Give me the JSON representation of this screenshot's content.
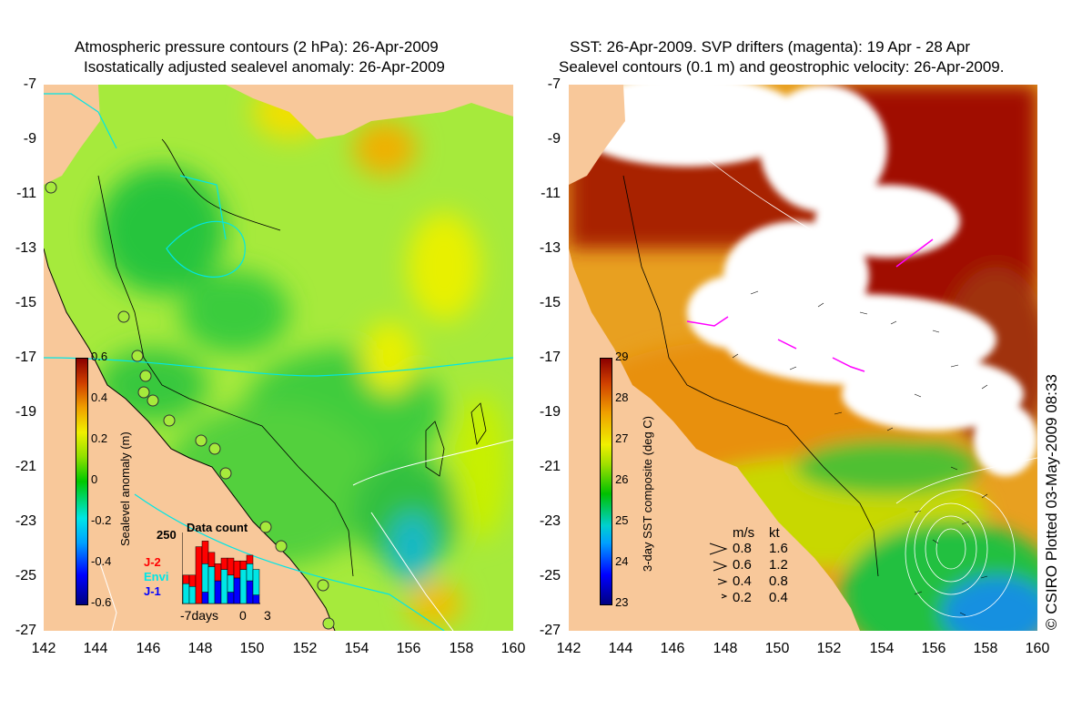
{
  "left": {
    "title_line1": "Atmospheric pressure contours (2 hPa): 26-Apr-2009",
    "title_line2": "Isostatically adjusted sealevel anomaly: 26-Apr-2009",
    "colorbar": {
      "label": "Sealevel anomaly (m)",
      "ticks": [
        "0.6",
        "0.4",
        "0.2",
        "0",
        "-0.2",
        "-0.4",
        "-0.6"
      ]
    },
    "data_count": {
      "title": "Data count",
      "max_label": "250",
      "satellites": [
        {
          "name": "J-2",
          "color": "#ff0000"
        },
        {
          "name": "Envi",
          "color": "#00e6e6"
        },
        {
          "name": "J-1",
          "color": "#0000ff"
        }
      ],
      "x_label_days": "-7days",
      "x_label_zero": "0",
      "x_label_three": "3",
      "bars": [
        {
          "red": 30,
          "cyan": 70,
          "blue": 0
        },
        {
          "red": 40,
          "cyan": 60,
          "blue": 0
        },
        {
          "red": 200,
          "cyan": 0,
          "blue": 0
        },
        {
          "red": 80,
          "cyan": 100,
          "blue": 40
        },
        {
          "red": 50,
          "cyan": 130,
          "blue": 0
        },
        {
          "red": 60,
          "cyan": 0,
          "blue": 80
        },
        {
          "red": 40,
          "cyan": 120,
          "blue": 0
        },
        {
          "red": 60,
          "cyan": 60,
          "blue": 40
        },
        {
          "red": 60,
          "cyan": 0,
          "blue": 90
        },
        {
          "red": 30,
          "cyan": 120,
          "blue": 0
        },
        {
          "red": 30,
          "cyan": 60,
          "blue": 80
        },
        {
          "red": 0,
          "cyan": 90,
          "blue": 30
        }
      ]
    }
  },
  "right": {
    "title_line1": "SST: 26-Apr-2009. SVP drifters (magenta): 19 Apr - 28 Apr",
    "title_line2": "Sealevel contours (0.1 m) and geostrophic velocity: 26-Apr-2009.",
    "colorbar": {
      "label": "3-day SST composite (deg C)",
      "ticks": [
        "29",
        "28",
        "27",
        "26",
        "25",
        "24",
        "23"
      ]
    },
    "velocity_legend": {
      "units_ms": "m/s",
      "units_kt": "kt",
      "rows": [
        {
          "ms": "0.8",
          "kt": "1.6"
        },
        {
          "ms": "0.6",
          "kt": "1.2"
        },
        {
          "ms": "0.4",
          "kt": "0.8"
        },
        {
          "ms": "0.2",
          "kt": "0.4"
        }
      ]
    }
  },
  "axes": {
    "lat_ticks": [
      "-7",
      "-9",
      "-11",
      "-13",
      "-15",
      "-17",
      "-19",
      "-21",
      "-23",
      "-25",
      "-27"
    ],
    "lon_ticks": [
      "142",
      "144",
      "146",
      "148",
      "150",
      "152",
      "154",
      "156",
      "158",
      "160"
    ]
  },
  "copyright": "© CSIRO Plotted 03-May-2009 08:33",
  "colors": {
    "land": "#f8c89a",
    "sealevel_base": "#8ee84a",
    "sst_cloud": "#ffffff",
    "drifter": "#ff00ff"
  }
}
